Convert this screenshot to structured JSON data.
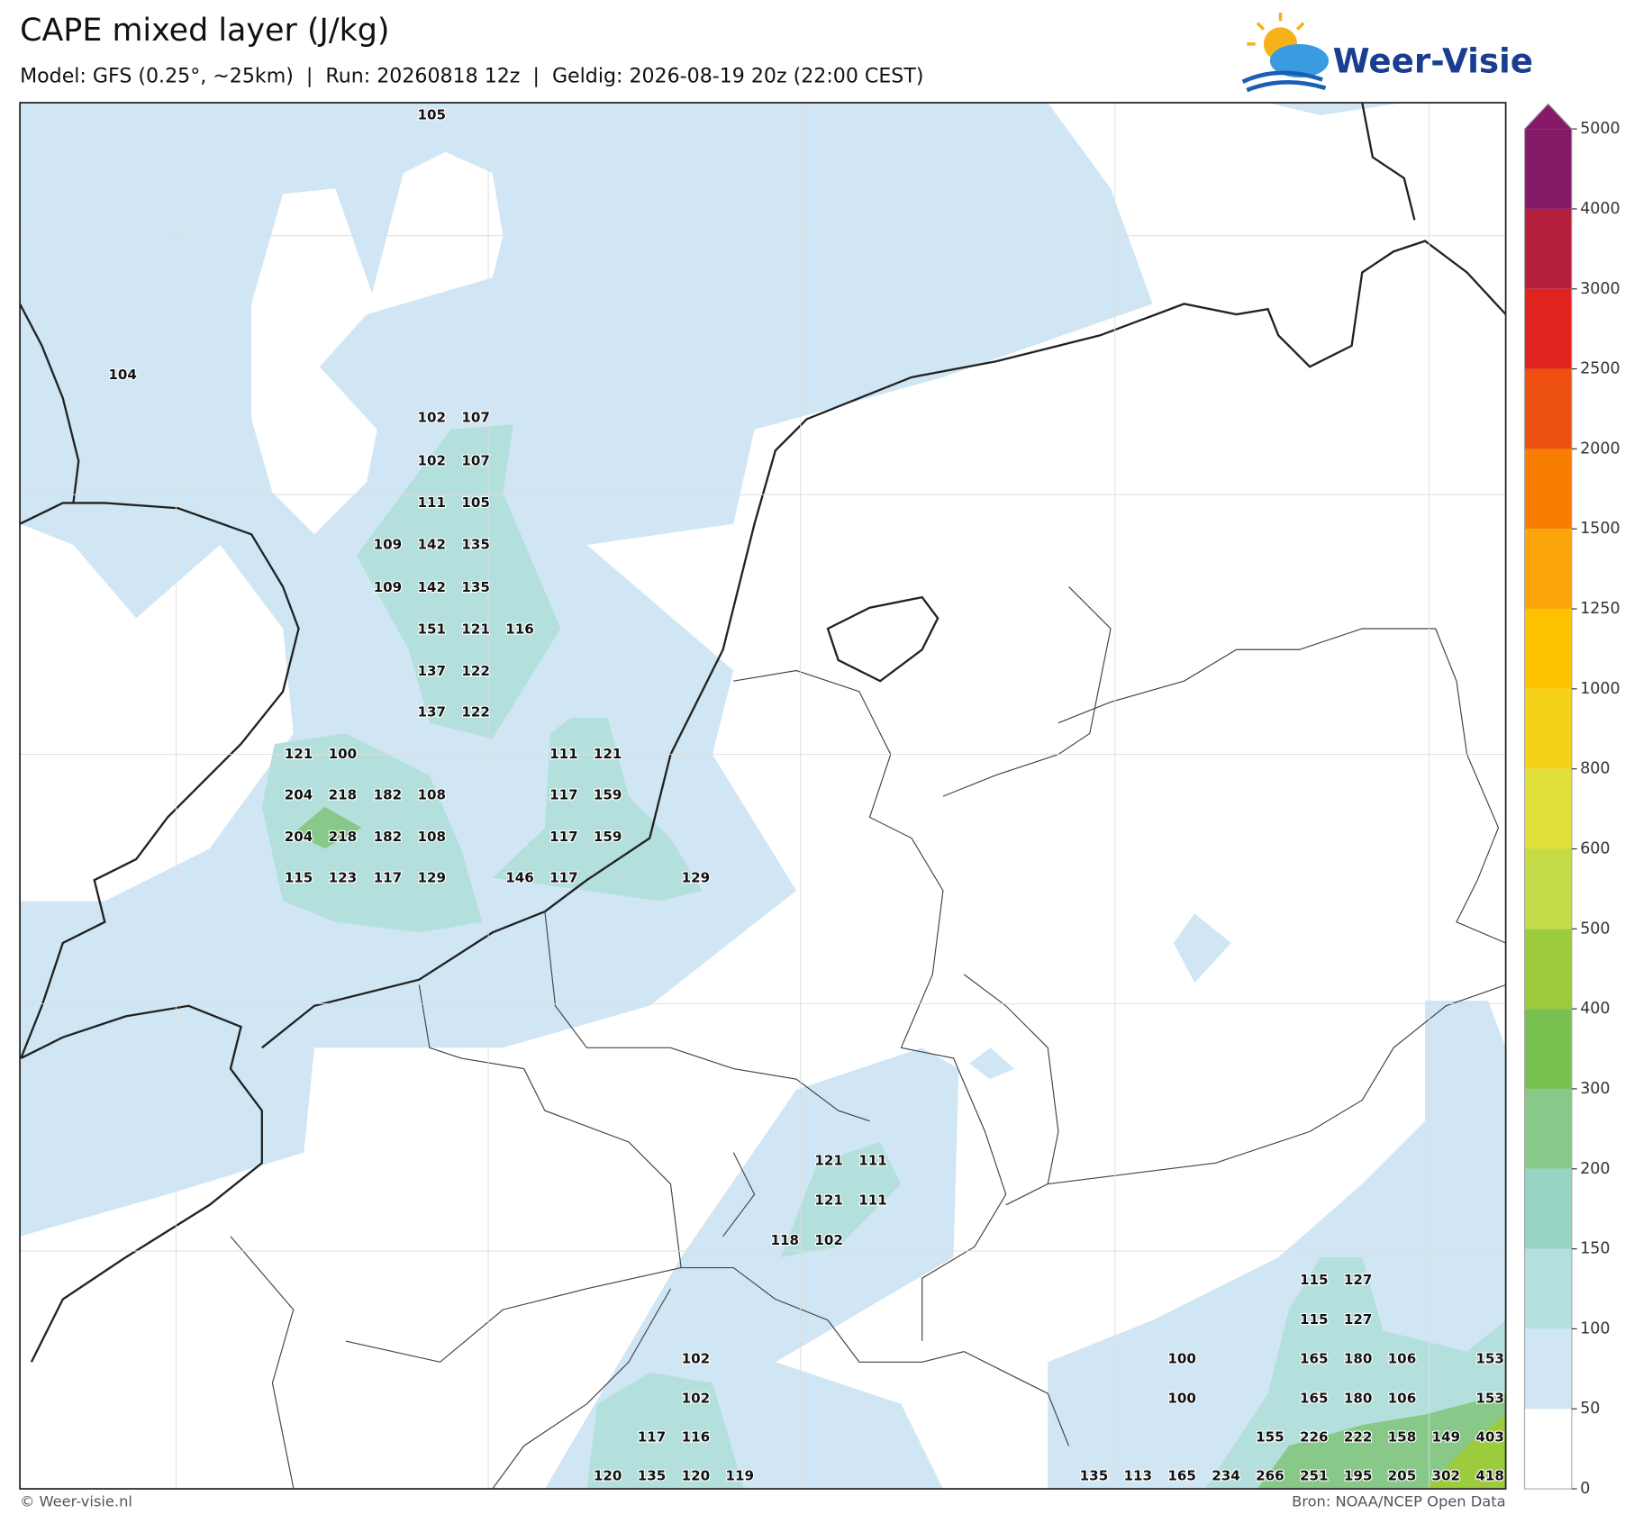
{
  "title": "CAPE mixed layer (J/kg)",
  "subtitle": "Model: GFS (0.25°, ~25km)  |  Run: 20260818 12z  |  Geldig: 2026-08-19 20z (22:00 CEST)",
  "logo": "Weer-Visie",
  "colorbar": {
    "levels": [
      0,
      50,
      100,
      150,
      200,
      300,
      400,
      500,
      600,
      800,
      1000,
      1250,
      1500,
      2000,
      2500,
      3000,
      4000,
      5000
    ],
    "colors": [
      "#ffffff",
      "#d0e6f5",
      "#b3e0dc",
      "#96d4c4",
      "#88c98a",
      "#78c050",
      "#9ccb3d",
      "#c5dc48",
      "#dfe03a",
      "#f3d217",
      "#fdc300",
      "#fca50a",
      "#f77e00",
      "#ec4f10",
      "#e0231e",
      "#b41f3c",
      "#861a68"
    ]
  },
  "map_labels": [
    105,
    104,
    102,
    107,
    102,
    107,
    111,
    105,
    109,
    142,
    135,
    109,
    142,
    135,
    151,
    121,
    116,
    137,
    122,
    137,
    122,
    121,
    100,
    111,
    121,
    204,
    218,
    182,
    108,
    117,
    159,
    204,
    218,
    182,
    108,
    117,
    159,
    115,
    123,
    117,
    129,
    146,
    117,
    129,
    121,
    111,
    121,
    111,
    118,
    102,
    115,
    127,
    115,
    127,
    102,
    100,
    165,
    180,
    106,
    153,
    102,
    100,
    165,
    180,
    106,
    153,
    117,
    116,
    155,
    226,
    222,
    158,
    149,
    403,
    120,
    135,
    120,
    119,
    135,
    113,
    165,
    234,
    266,
    251,
    195,
    205,
    302,
    418
  ],
  "footer": {
    "left": "© Weer-visie.nl",
    "right": "Bron: NOAA/NCEP Open Data"
  }
}
